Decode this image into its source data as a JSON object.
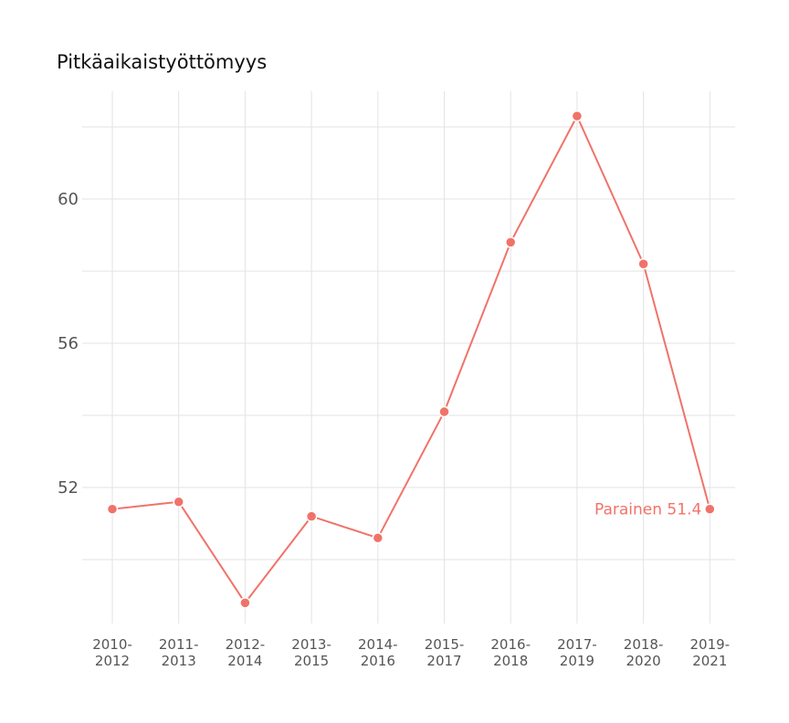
{
  "chart_data": {
    "type": "line",
    "title": "Pitkäaikaistyöttömyys",
    "xlabel": "",
    "ylabel": "",
    "categories": [
      "2010-2012",
      "2011-2013",
      "2012-2014",
      "2013-2015",
      "2014-2016",
      "2015-2017",
      "2016-2018",
      "2017-2019",
      "2018-2020",
      "2019-2021"
    ],
    "category_lines": [
      [
        "2010-",
        "2012"
      ],
      [
        "2011-",
        "2013"
      ],
      [
        "2012-",
        "2014"
      ],
      [
        "2013-",
        "2015"
      ],
      [
        "2014-",
        "2016"
      ],
      [
        "2015-",
        "2017"
      ],
      [
        "2016-",
        "2018"
      ],
      [
        "2017-",
        "2019"
      ],
      [
        "2018-",
        "2020"
      ],
      [
        "2019-",
        "2021"
      ]
    ],
    "series": [
      {
        "values": [
          51.4,
          51.6,
          48.8,
          51.2,
          50.6,
          54.1,
          58.8,
          62.3,
          58.2,
          51.4
        ],
        "color": "#f0736a"
      }
    ],
    "end_label": "Parainen 51.4",
    "y_ticks": [
      52,
      56,
      60
    ],
    "y_gridlines": [
      50,
      52,
      54,
      56,
      58,
      60,
      62
    ],
    "ylim": [
      48.2,
      63.0
    ],
    "grid": true,
    "legend": "none"
  }
}
